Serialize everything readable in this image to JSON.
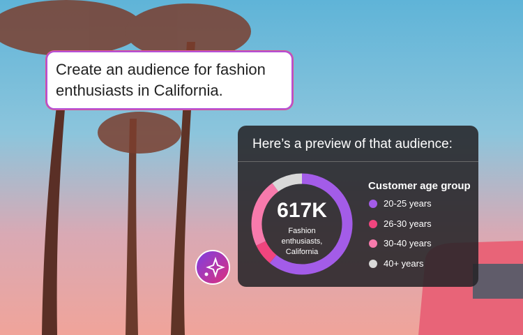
{
  "prompt": "Create an audience for fashion enthusiasts in California.",
  "panel_title": "Here’s a preview of that audience:",
  "chart_data": {
    "type": "donut",
    "center_value": "617K",
    "center_label": "Fashion enthusiasts, California",
    "legend_title": "Customer age group",
    "categories": [
      "20-25 years",
      "26-30 years",
      "30-40 years",
      "40+ years"
    ],
    "values": [
      61,
      7,
      22,
      10
    ],
    "colors": [
      "#a35ce8",
      "#f0457e",
      "#f77aac",
      "#d9d9d9"
    ]
  }
}
